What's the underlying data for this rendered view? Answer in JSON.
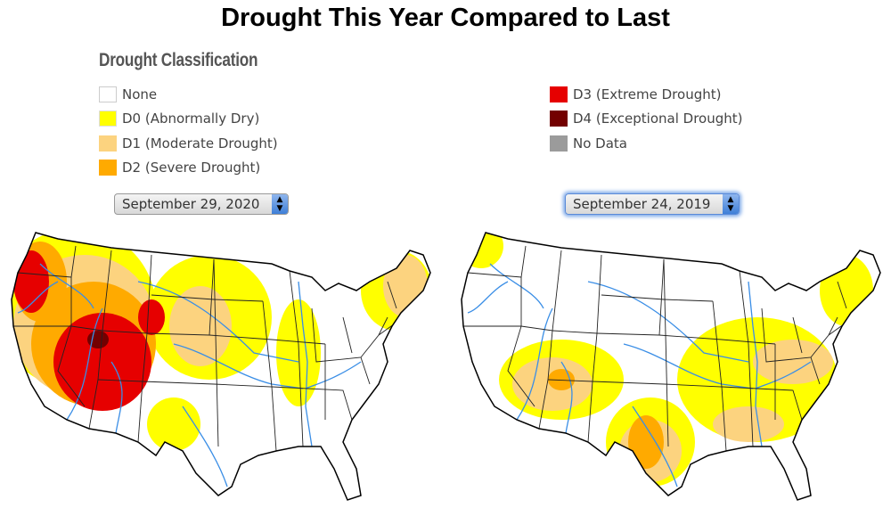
{
  "title": "Drought This Year Compared to Last",
  "legend": {
    "title": "Drought Classification",
    "items": [
      {
        "label": "None",
        "color": "#ffffff"
      },
      {
        "label": "D0 (Abnormally Dry)",
        "color": "#ffff00"
      },
      {
        "label": "D1 (Moderate Drought)",
        "color": "#fcd37f"
      },
      {
        "label": "D2 (Severe Drought)",
        "color": "#ffaa00"
      },
      {
        "label": "D3 (Extreme Drought)",
        "color": "#e60000"
      },
      {
        "label": "D4 (Exceptional Drought)",
        "color": "#730000"
      },
      {
        "label": "No Data",
        "color": "#9b9b9b"
      }
    ]
  },
  "maps": [
    {
      "date": "September 29, 2020"
    },
    {
      "date": "September 24, 2019"
    }
  ]
}
